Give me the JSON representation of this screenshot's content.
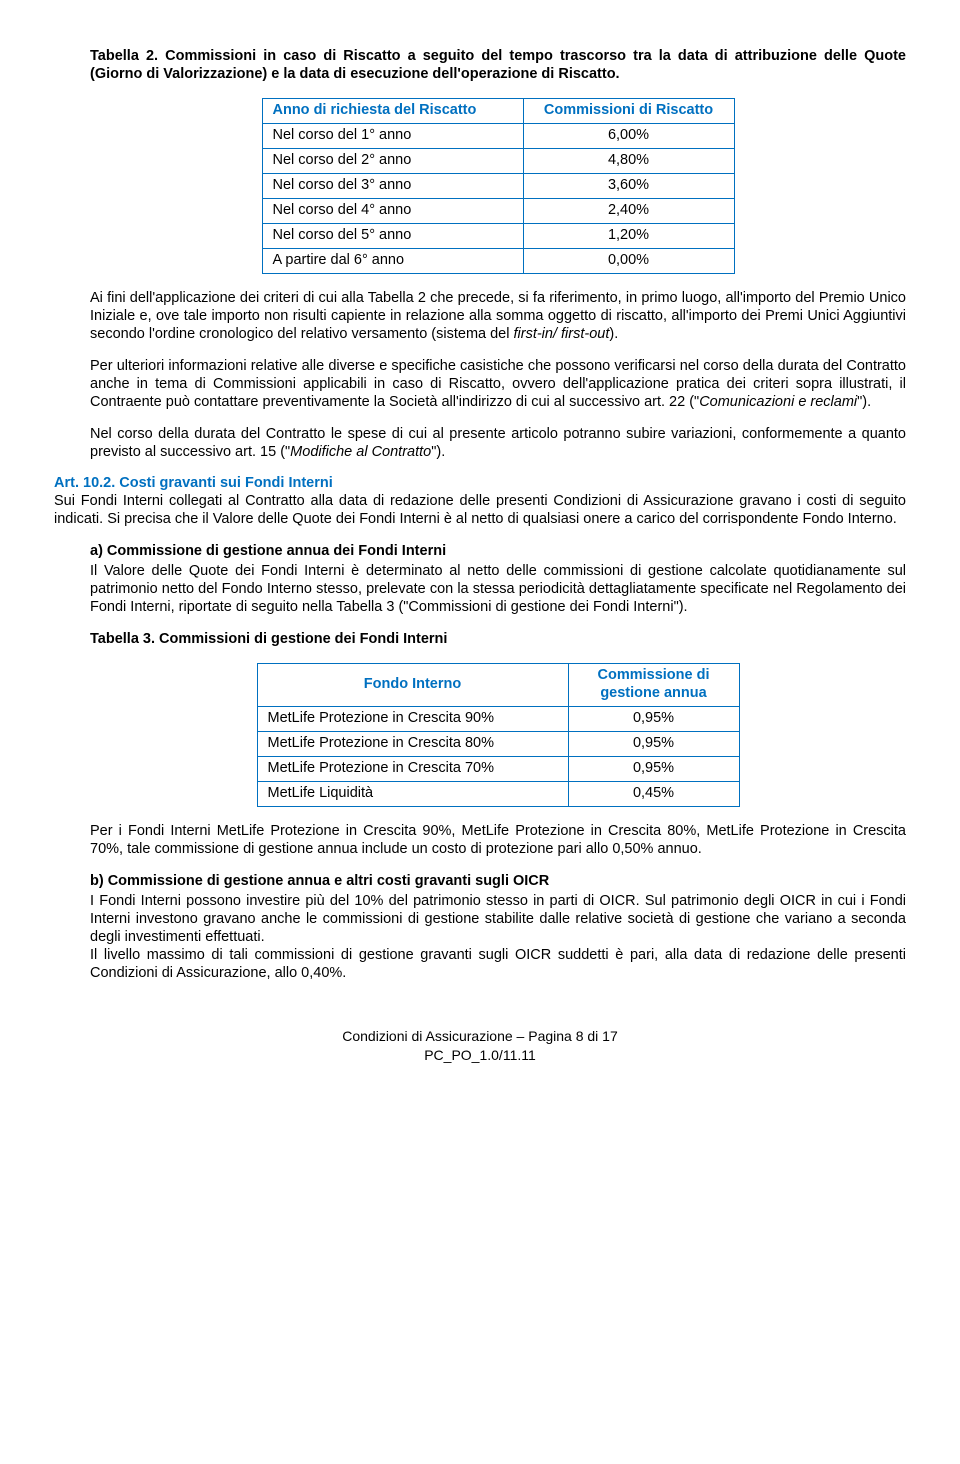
{
  "tab2_caption": "Tabella 2. Commissioni in caso di Riscatto a seguito del tempo trascorso tra la data di attribuzione delle Quote (Giorno di Valorizzazione) e la data di esecuzione dell'operazione di Riscatto.",
  "tab2": {
    "headers": [
      "Anno di richiesta del Riscatto",
      "Commissioni di Riscatto"
    ],
    "rows": [
      [
        "Nel corso del 1° anno",
        "6,00%"
      ],
      [
        "Nel corso del 2° anno",
        "4,80%"
      ],
      [
        "Nel corso del 3° anno",
        "3,60%"
      ],
      [
        "Nel corso del 4° anno",
        "2,40%"
      ],
      [
        "Nel corso del 5° anno",
        "1,20%"
      ],
      [
        "A partire dal 6° anno",
        "0,00%"
      ]
    ]
  },
  "p1a": "Ai fini dell'applicazione dei criteri di cui alla Tabella 2 che precede, si fa riferimento, in primo luogo, all'importo del Premio Unico Iniziale e, ove tale importo non risulti capiente in relazione alla somma oggetto di riscatto, all'importo dei Premi Unici Aggiuntivi secondo l'ordine cronologico del relativo versamento (sistema del ",
  "p1b": "first-in/ first-out",
  "p1c": ").",
  "p2a": "Per ulteriori informazioni relative alle diverse e specifiche casistiche che possono verificarsi nel corso della durata del Contratto anche in tema di Commissioni applicabili in caso di Riscatto, ovvero dell'applicazione pratica dei criteri sopra illustrati, il Contraente può contattare preventivamente la Società all'indirizzo di cui al successivo art. 22 (\"",
  "p2b": "Comunicazioni e reclami",
  "p2c": "\").",
  "p3a": "Nel corso della durata del Contratto le spese di cui al presente articolo potranno subire variazioni, conformemente a quanto previsto al successivo art. 15 (\"",
  "p3b": "Modifiche al Contratto",
  "p3c": "\").",
  "art_title": "Art. 10.2. Costi gravanti sui Fondi Interni",
  "art_body": "Sui Fondi Interni collegati al Contratto alla data di redazione delle presenti Condizioni di Assicurazione gravano i costi di seguito indicati. Si precisa che il Valore delle Quote dei Fondi Interni è al netto di qualsiasi onere a carico del corrispondente Fondo Interno.",
  "sec_a_title": "a)  Commissione di gestione annua dei Fondi Interni",
  "sec_a_body": "Il Valore delle Quote dei Fondi Interni è determinato al netto delle commissioni di gestione calcolate quotidianamente sul patrimonio netto del Fondo Interno stesso, prelevate con la stessa periodicità dettagliatamente specificate nel Regolamento dei Fondi Interni, riportate di seguito nella Tabella 3 (\"Commissioni di gestione dei Fondi Interni\").",
  "tab3_caption": "Tabella 3. Commissioni di gestione dei Fondi Interni",
  "tab3": {
    "headers": [
      "Fondo Interno",
      "Commissione di gestione annua"
    ],
    "rows": [
      [
        "MetLife Protezione in Crescita 90%",
        "0,95%"
      ],
      [
        "MetLife Protezione in Crescita 80%",
        "0,95%"
      ],
      [
        "MetLife Protezione in Crescita 70%",
        "0,95%"
      ],
      [
        "MetLife Liquidità",
        "0,45%"
      ]
    ]
  },
  "p4": "Per i Fondi Interni MetLife Protezione in Crescita 90%, MetLife Protezione in Crescita 80%, MetLife Protezione in Crescita 70%, tale commissione di gestione annua include un costo di protezione pari allo 0,50% annuo.",
  "sec_b_title": "b)  Commissione di gestione annua e altri costi gravanti sugli OICR",
  "sec_b_body1": "I Fondi Interni possono investire più del 10% del patrimonio stesso in parti di OICR. Sul patrimonio degli OICR in cui i Fondi Interni investono gravano anche le commissioni di gestione stabilite dalle relative società di gestione che variano a seconda degli investimenti effettuati.",
  "sec_b_body2": "Il livello massimo di tali commissioni di gestione gravanti sugli OICR suddetti è pari, alla data di redazione delle presenti Condizioni di Assicurazione, allo 0,40%.",
  "footer1": "Condizioni di Assicurazione – Pagina 8 di 17",
  "footer2": "PC_PO_1.0/11.11"
}
